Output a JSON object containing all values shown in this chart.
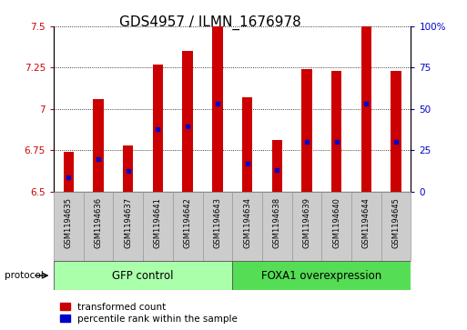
{
  "title": "GDS4957 / ILMN_1676978",
  "samples": [
    "GSM1194635",
    "GSM1194636",
    "GSM1194637",
    "GSM1194641",
    "GSM1194642",
    "GSM1194643",
    "GSM1194634",
    "GSM1194638",
    "GSM1194639",
    "GSM1194640",
    "GSM1194644",
    "GSM1194645"
  ],
  "transformed_counts": [
    6.74,
    7.06,
    6.78,
    7.27,
    7.35,
    7.5,
    7.07,
    6.81,
    7.24,
    7.23,
    7.5,
    7.23
  ],
  "percentile_ranks": [
    6.585,
    6.695,
    6.625,
    6.875,
    6.895,
    7.03,
    6.67,
    6.63,
    6.8,
    6.8,
    7.03,
    6.8
  ],
  "bar_color": "#CC0000",
  "blue_color": "#0000CC",
  "ylim_left": [
    6.5,
    7.5
  ],
  "ylim_right": [
    0,
    100
  ],
  "yticks_left": [
    6.5,
    6.75,
    7.0,
    7.25,
    7.5
  ],
  "ytick_labels_left": [
    "6.5",
    "6.75",
    "7",
    "7.25",
    "7.5"
  ],
  "yticks_right": [
    0,
    25,
    50,
    75,
    100
  ],
  "ytick_labels_right": [
    "0",
    "25",
    "50",
    "75",
    "100%"
  ],
  "bar_width": 0.35,
  "title_fontsize": 11,
  "tick_fontsize": 7.5,
  "sample_fontsize": 6.0,
  "label_fontsize": 8.5,
  "legend_fontsize": 7.5,
  "gfp_color": "#AAFFAA",
  "foxa_color": "#55DD55",
  "sample_bg_color": "#CCCCCC",
  "sample_edge_color": "#999999"
}
